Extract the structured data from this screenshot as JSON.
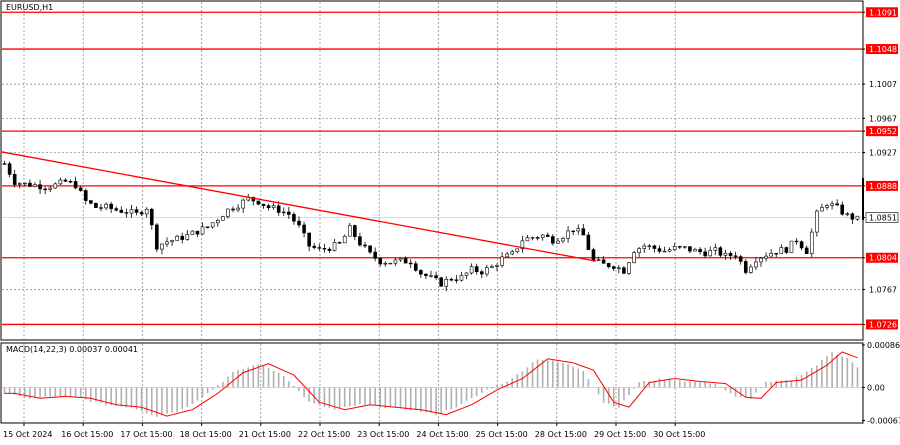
{
  "window": {
    "title": "EURUSD,H1"
  },
  "colors": {
    "bull": "#000000",
    "bear": "#000000",
    "level": "#ff0000",
    "trend": "#ff0000",
    "grid": "#808080",
    "macd_hist": "#b0b0b0",
    "macd_signal": "#ff0000",
    "label_bg": "#ff0000",
    "label_fg": "#ffffff"
  },
  "chart_data": [
    {
      "type": "candlestick",
      "symbol": "EURUSD",
      "timeframe": "H1",
      "ylim": [
        1.0709,
        1.1103
      ],
      "x_ticks": [
        "15 Oct 2024",
        "16 Oct 15:00",
        "17 Oct 15:00",
        "18 Oct 15:00",
        "21 Oct 15:00",
        "22 Oct 15:00",
        "23 Oct 15:00",
        "24 Oct 15:00",
        "25 Oct 15:00",
        "28 Oct 15:00",
        "29 Oct 15:00",
        "30 Oct 15:00"
      ],
      "y_ticks": [
        {
          "value": 1.1091,
          "text": "1.1091",
          "highlight": true
        },
        {
          "value": 1.1048,
          "text": "1.1048",
          "highlight": true
        },
        {
          "value": 1.1007,
          "text": "1.1007",
          "highlight": false
        },
        {
          "value": 1.0967,
          "text": "1.0967",
          "highlight": false
        },
        {
          "value": 1.0952,
          "text": "1.0952",
          "highlight": true
        },
        {
          "value": 1.0927,
          "text": "1.0927",
          "highlight": false
        },
        {
          "value": 1.0888,
          "text": "1.0888",
          "highlight": true
        },
        {
          "value": 1.0851,
          "text": "1.0851",
          "highlight": true,
          "current": true
        },
        {
          "value": 1.0804,
          "text": "1.0804",
          "highlight": true
        },
        {
          "value": 1.0767,
          "text": "1.0767",
          "highlight": false
        },
        {
          "value": 1.0726,
          "text": "1.0726",
          "highlight": true
        }
      ],
      "levels": [
        1.1091,
        1.1048,
        1.0952,
        1.0888,
        1.0804,
        1.0726
      ],
      "trendline": {
        "from": [
          0,
          1.0928
        ],
        "to": [
          116.5,
          1.08
        ]
      },
      "current_price": 1.0851,
      "anchors": [
        [
          0,
          1.0914
        ],
        [
          2,
          1.0893
        ],
        [
          4,
          1.089
        ],
        [
          6,
          1.0889
        ],
        [
          8,
          1.0887
        ],
        [
          10,
          1.0889
        ],
        [
          12,
          1.0893
        ],
        [
          14,
          1.0889
        ],
        [
          16,
          1.087
        ],
        [
          18,
          1.0863
        ],
        [
          20,
          1.0863
        ],
        [
          22,
          1.086
        ],
        [
          24,
          1.0858
        ],
        [
          26,
          1.0855
        ],
        [
          28,
          1.0863
        ],
        [
          30,
          1.0818
        ],
        [
          32,
          1.0823
        ],
        [
          34,
          1.0826
        ],
        [
          36,
          1.083
        ],
        [
          38,
          1.0835
        ],
        [
          40,
          1.084
        ],
        [
          42,
          1.085
        ],
        [
          44,
          1.086
        ],
        [
          46,
          1.0866
        ],
        [
          48,
          1.0873
        ],
        [
          50,
          1.087
        ],
        [
          52,
          1.0863
        ],
        [
          54,
          1.086
        ],
        [
          56,
          1.0855
        ],
        [
          58,
          1.084
        ],
        [
          60,
          1.0818
        ],
        [
          62,
          1.0813
        ],
        [
          64,
          1.0816
        ],
        [
          66,
          1.082
        ],
        [
          68,
          1.0838
        ],
        [
          70,
          1.0821
        ],
        [
          72,
          1.0808
        ],
        [
          74,
          1.08
        ],
        [
          76,
          1.0799
        ],
        [
          78,
          1.08
        ],
        [
          80,
          1.08
        ],
        [
          82,
          1.0786
        ],
        [
          84,
          1.078
        ],
        [
          86,
          1.0774
        ],
        [
          88,
          1.078
        ],
        [
          90,
          1.0781
        ],
        [
          92,
          1.079
        ],
        [
          94,
          1.0788
        ],
        [
          96,
          1.0793
        ],
        [
          98,
          1.0803
        ],
        [
          100,
          1.0808
        ],
        [
          102,
          1.0825
        ],
        [
          104,
          1.0828
        ],
        [
          106,
          1.083
        ],
        [
          108,
          1.0825
        ],
        [
          110,
          1.083
        ],
        [
          112,
          1.0838
        ],
        [
          114,
          1.083
        ],
        [
          116,
          1.08
        ],
        [
          118,
          1.0796
        ],
        [
          120,
          1.0795
        ],
        [
          122,
          1.0789
        ],
        [
          124,
          1.0813
        ],
        [
          126,
          1.0818
        ],
        [
          128,
          1.0815
        ],
        [
          130,
          1.0812
        ],
        [
          132,
          1.0815
        ],
        [
          134,
          1.0815
        ],
        [
          136,
          1.0812
        ],
        [
          138,
          1.081
        ],
        [
          140,
          1.0812
        ],
        [
          142,
          1.0806
        ],
        [
          144,
          1.0808
        ],
        [
          146,
          1.079
        ],
        [
          148,
          1.0803
        ],
        [
          150,
          1.0808
        ],
        [
          152,
          1.0812
        ],
        [
          154,
          1.0814
        ],
        [
          156,
          1.0825
        ],
        [
          158,
          1.0812
        ],
        [
          160,
          1.0855
        ],
        [
          162,
          1.0868
        ],
        [
          164,
          1.0862
        ],
        [
          166,
          1.0853
        ],
        [
          168,
          1.0849
        ]
      ]
    },
    {
      "type": "histogram",
      "title": "MACD(14,22,3) 0.00037 0.00041",
      "ylim": [
        -0.0007,
        0.00088
      ],
      "y_ticks": [
        {
          "value": 0.00086,
          "text": "0.00086"
        },
        {
          "value": 0.0,
          "text": "0.00"
        },
        {
          "value": -0.00067,
          "text": "-0.00067"
        }
      ],
      "macd_anchors": [
        [
          0,
          -0.00012
        ],
        [
          5,
          -0.00022
        ],
        [
          10,
          -0.00018
        ],
        [
          15,
          -0.00022
        ],
        [
          20,
          -0.00035
        ],
        [
          25,
          -0.0004
        ],
        [
          30,
          -0.00058
        ],
        [
          35,
          -0.00045
        ],
        [
          40,
          -0.00012
        ],
        [
          45,
          0.0003
        ],
        [
          50,
          0.00048
        ],
        [
          55,
          0.00025
        ],
        [
          60,
          -0.0003
        ],
        [
          65,
          -0.00045
        ],
        [
          70,
          -0.00035
        ],
        [
          75,
          -0.0004
        ],
        [
          80,
          -0.00045
        ],
        [
          85,
          -0.00055
        ],
        [
          90,
          -0.00035
        ],
        [
          95,
          -5e-05
        ],
        [
          100,
          0.00018
        ],
        [
          105,
          0.00058
        ],
        [
          110,
          0.0005
        ],
        [
          114,
          0.00035
        ],
        [
          118,
          -0.0003
        ],
        [
          121,
          -0.0004
        ],
        [
          125,
          0.0001
        ],
        [
          130,
          0.00018
        ],
        [
          135,
          0.00012
        ],
        [
          140,
          8e-05
        ],
        [
          144,
          -0.0002
        ],
        [
          147,
          -0.00022
        ],
        [
          150,
          0.0001
        ],
        [
          155,
          0.00015
        ],
        [
          160,
          0.00045
        ],
        [
          163,
          0.00072
        ],
        [
          166,
          0.0006
        ],
        [
          168,
          0.0004
        ]
      ]
    }
  ]
}
